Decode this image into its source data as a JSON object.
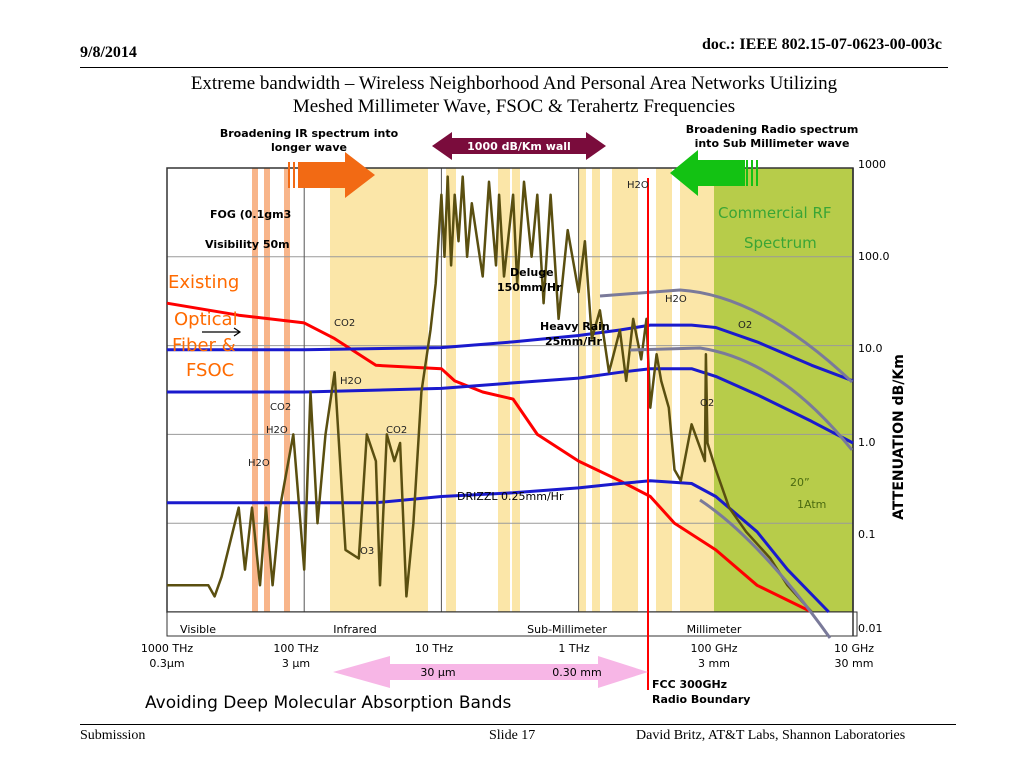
{
  "header": {
    "date": "9/8/2014",
    "doc_id": "doc.: IEEE 802.15-07-0623-00-003c",
    "title_line1": "Extreme bandwidth – Wireless Neighborhood And Personal Area Networks Utilizing",
    "title_line2": "Meshed Millimeter Wave, FSOC & Terahertz Frequencies"
  },
  "footer": {
    "left": "Submission",
    "center": "Slide 17",
    "right": "David Britz, AT&T Labs, Shannon Laboratories"
  },
  "chart_data": {
    "type": "line",
    "xlabel": "",
    "ylabel": "ATTENUATION dB/Km",
    "y_scale": "log",
    "ylim": [
      0.01,
      1000
    ],
    "y_ticks": [
      "1000",
      "100.0",
      "10.0",
      "1.0",
      "0.1",
      "0.01"
    ],
    "x_scale": "log",
    "x_direction": "frequency decreasing left to right",
    "x_ticks": [
      {
        "freq": "1000 THz",
        "wavelength": "0.3µm"
      },
      {
        "freq": "100 THz",
        "wavelength": "3 µm"
      },
      {
        "freq": "10 THz",
        "wavelength": ""
      },
      {
        "freq": "1 THz",
        "wavelength": ""
      },
      {
        "freq": "100 GHz",
        "wavelength": "3 mm"
      },
      {
        "freq": "10 GHz",
        "wavelength": "30 mm"
      }
    ],
    "wavelength_range_labels": [
      "30 µm",
      "0.30 mm"
    ],
    "band_labels": [
      "Visible",
      "Infrared",
      "Sub-Millimeter",
      "Millimeter"
    ],
    "series": [
      {
        "name": "FOG (0.1gm3  Visibility 50m",
        "color": "#ff0000",
        "points": [
          [
            1000000,
            30
          ],
          [
            300000,
            22
          ],
          [
            100000,
            18
          ],
          [
            60000,
            12
          ],
          [
            30000,
            6
          ],
          [
            10000,
            5.5
          ],
          [
            8000,
            4
          ],
          [
            5000,
            3
          ],
          [
            3000,
            2.5
          ],
          [
            2000,
            1
          ],
          [
            1000,
            0.5
          ],
          [
            500,
            0.3
          ],
          [
            300,
            0.2
          ],
          [
            200,
            0.1
          ],
          [
            100,
            0.05
          ],
          [
            50,
            0.02
          ],
          [
            20,
            0.01
          ]
        ]
      },
      {
        "name": "Deluge 150mm/Hr",
        "color": "#1a1acd",
        "points": [
          [
            1000000,
            9
          ],
          [
            100000,
            9
          ],
          [
            10000,
            9.5
          ],
          [
            3000,
            11
          ],
          [
            1000,
            13
          ],
          [
            500,
            15
          ],
          [
            300,
            17
          ],
          [
            150,
            17
          ],
          [
            100,
            16
          ],
          [
            50,
            11
          ],
          [
            20,
            6
          ],
          [
            10,
            4
          ]
        ]
      },
      {
        "name": "Heavy Rain 25mm/Hr",
        "color": "#1a1acd",
        "points": [
          [
            1000000,
            3
          ],
          [
            100000,
            3
          ],
          [
            10000,
            3.3
          ],
          [
            3000,
            3.8
          ],
          [
            1000,
            4.3
          ],
          [
            500,
            5
          ],
          [
            300,
            5.5
          ],
          [
            150,
            5.5
          ],
          [
            100,
            4.5
          ],
          [
            50,
            2.8
          ],
          [
            20,
            1.4
          ],
          [
            10,
            0.8
          ]
        ]
      },
      {
        "name": "DRIZZL 0.25mm/Hr",
        "color": "#1a1acd",
        "points": [
          [
            1000000,
            0.17
          ],
          [
            100000,
            0.17
          ],
          [
            30000,
            0.17
          ],
          [
            10000,
            0.2
          ],
          [
            3000,
            0.22
          ],
          [
            1000,
            0.25
          ],
          [
            500,
            0.28
          ],
          [
            300,
            0.3
          ],
          [
            150,
            0.28
          ],
          [
            100,
            0.2
          ],
          [
            50,
            0.08
          ],
          [
            30,
            0.03
          ],
          [
            15,
            0.01
          ]
        ]
      },
      {
        "name": "Molecular absorption (H2O, CO2, O2, O3)",
        "color": "#5a4f10",
        "points": [
          [
            1000000,
            0.02
          ],
          [
            500000,
            0.02
          ],
          [
            450000,
            0.015
          ],
          [
            400000,
            0.025
          ],
          [
            300000,
            0.15
          ],
          [
            270000,
            0.03
          ],
          [
            240000,
            0.15
          ],
          [
            210000,
            0.02
          ],
          [
            190000,
            0.15
          ],
          [
            170000,
            0.02
          ],
          [
            150000,
            0.15
          ],
          [
            120000,
            1
          ],
          [
            100000,
            0.03
          ],
          [
            90000,
            3
          ],
          [
            80000,
            0.1
          ],
          [
            70000,
            1
          ],
          [
            60000,
            5
          ],
          [
            50000,
            0.05
          ],
          [
            40000,
            0.04
          ],
          [
            35000,
            1
          ],
          [
            30000,
            0.5
          ],
          [
            28000,
            0.02
          ],
          [
            25000,
            1
          ],
          [
            22000,
            0.5
          ],
          [
            20000,
            0.8
          ],
          [
            18000,
            0.015
          ],
          [
            16000,
            0.1
          ],
          [
            14000,
            3
          ],
          [
            12000,
            15
          ],
          [
            11000,
            50
          ],
          [
            10000,
            500
          ],
          [
            9500,
            100
          ],
          [
            9000,
            800
          ],
          [
            8500,
            80
          ],
          [
            8000,
            500
          ],
          [
            7500,
            150
          ],
          [
            7000,
            800
          ],
          [
            6500,
            100
          ],
          [
            6000,
            400
          ],
          [
            5000,
            60
          ],
          [
            4500,
            700
          ],
          [
            4000,
            80
          ],
          [
            3800,
            500
          ],
          [
            3500,
            60
          ],
          [
            3000,
            500
          ],
          [
            2800,
            50
          ],
          [
            2500,
            700
          ],
          [
            2200,
            100
          ],
          [
            2000,
            500
          ],
          [
            1800,
            30
          ],
          [
            1600,
            500
          ],
          [
            1400,
            20
          ],
          [
            1200,
            200
          ],
          [
            1000,
            40
          ],
          [
            900,
            150
          ],
          [
            800,
            12
          ],
          [
            700,
            25
          ],
          [
            600,
            5
          ],
          [
            500,
            15
          ],
          [
            450,
            4
          ],
          [
            400,
            20
          ],
          [
            350,
            7
          ],
          [
            320,
            20
          ],
          [
            300,
            2
          ],
          [
            270,
            8
          ],
          [
            250,
            4
          ],
          [
            220,
            2
          ],
          [
            200,
            0.4
          ],
          [
            180,
            0.3
          ],
          [
            150,
            1.3
          ],
          [
            120,
            0.5
          ],
          [
            118,
            8
          ],
          [
            115,
            0.8
          ],
          [
            100,
            0.4
          ],
          [
            80,
            0.15
          ],
          [
            60,
            0.08
          ],
          [
            40,
            0.04
          ],
          [
            30,
            0.02
          ],
          [
            20,
            0.01
          ]
        ]
      }
    ],
    "annotations": {
      "fog": "FOG (0.1gm3",
      "visibility": "Visibility 50m",
      "deluge1": "Deluge",
      "deluge2": "150mm/Hr",
      "heavy1": "Heavy Rain",
      "heavy2": "25mm/Hr",
      "drizzle": "DRIZZL 0.25mm/Hr",
      "existing": "Existing",
      "optical": "Optical",
      "fiber": "Fiber &",
      "fsoc": "FSOC",
      "commercial1": "Commercial RF",
      "commercial2": "Spectrum",
      "twenty": "20”",
      "atm": "1Atm",
      "h2o": "H2O",
      "co2": "CO2",
      "o2": "O2",
      "o3": "O3",
      "ir_arrow1": "Broadening IR spectrum into",
      "ir_arrow2": "longer wave",
      "wall": "1000 dB/Km wall",
      "radio_arrow1": "Broadening Radio spectrum",
      "radio_arrow2": "into Sub Millimeter wave",
      "fcc1": "FCC 300GHz",
      "fcc2": "Radio Boundary",
      "avoiding": "Avoiding Deep Molecular Absorption Bands"
    },
    "colors": {
      "fog": "#ff0000",
      "rain": "#1a1acd",
      "absorption": "#5a4f10",
      "window_band": "#fbe6a8",
      "commercial_rf": "#b7cc4a",
      "fcc_line": "#ff0000",
      "existing_text": "#ff6a00",
      "wall_arrow": "#7a0c3c",
      "ir_arrow": "#f26a14",
      "radio_arrow": "#13c213",
      "range_arrow": "#f7b6e6"
    }
  }
}
